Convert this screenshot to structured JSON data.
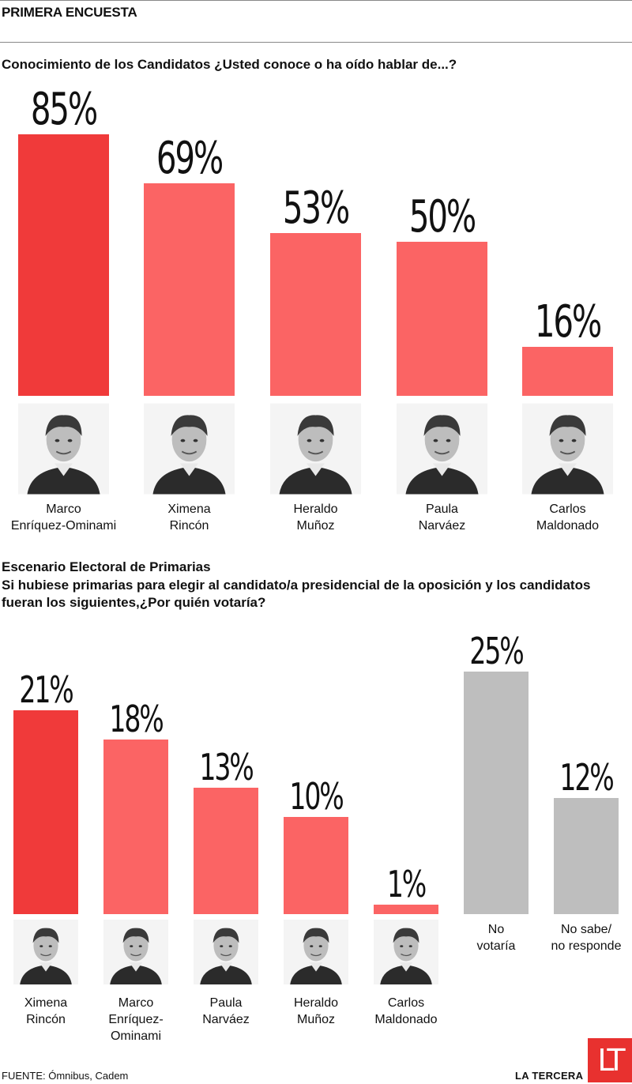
{
  "header": {
    "title": "PRIMERA ENCUESTA"
  },
  "colors": {
    "lead": "#f03a3a",
    "bar": "#fb6464",
    "grey": "#bebebe",
    "brand": "#e8312f"
  },
  "chart_data": [
    {
      "type": "bar",
      "title": "Conocimiento de los Candidatos ¿Usted conoce o ha oído hablar de...?",
      "categories": [
        "Marco\nEnríquez-Ominami",
        "Ximena\nRincón",
        "Heraldo\nMuñoz",
        "Paula\nNarváez",
        "Carlos\nMaldonado"
      ],
      "values": [
        85,
        69,
        53,
        50,
        16
      ],
      "labels": [
        "85%",
        "69%",
        "53%",
        "50%",
        "16%"
      ],
      "ylim": [
        0,
        85
      ]
    },
    {
      "type": "bar",
      "title": "Escenario Electoral de Primarias",
      "subtitle": "Si hubiese primarias para elegir al candidato/a presidencial de la oposición y los candidatos fueran los siguientes,¿Por quién votaría?",
      "categories": [
        "Ximena\nRincón",
        "Marco\nEnríquez-\nOminami",
        "Paula\nNarváez",
        "Heraldo\nMuñoz",
        "Carlos\nMaldonado",
        "No\nvotaría",
        "No sabe/\nno responde"
      ],
      "values": [
        21,
        18,
        13,
        10,
        1,
        25,
        12
      ],
      "labels": [
        "21%",
        "18%",
        "13%",
        "10%",
        "1%",
        "25%",
        "12%"
      ],
      "ylim": [
        0,
        25
      ]
    }
  ],
  "footer": {
    "source": "FUENTE: Ómnibus, Cadem",
    "brand": "LA TERCERA",
    "logo": "LT"
  }
}
